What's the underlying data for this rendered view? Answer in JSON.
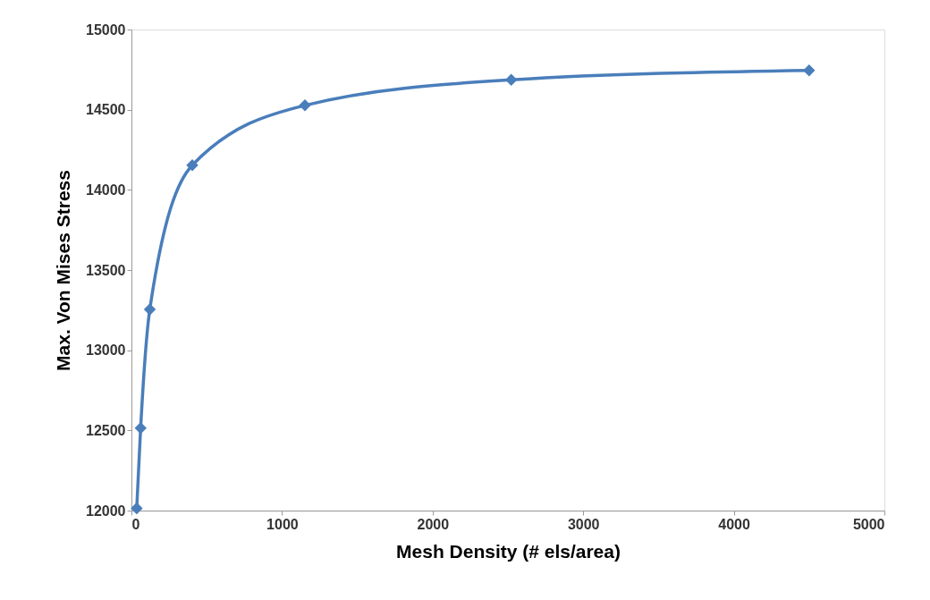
{
  "chart_data": {
    "type": "line",
    "xlabel": "Mesh Density (# els/area)",
    "ylabel": "Max. Von Mises Stress",
    "x": [
      35,
      61,
      122,
      404,
      1152,
      2522,
      4500
    ],
    "series": [
      {
        "color": "#4a7ebb",
        "values": [
          12014,
          12514,
          13255,
          14154,
          14527,
          14686,
          14745
        ]
      }
    ],
    "xlim": [
      0,
      5000
    ],
    "xticks": [
      0,
      1000,
      2000,
      3000,
      4000,
      5000
    ],
    "ylim": [
      12000,
      15000
    ],
    "yticks": [
      12000,
      12500,
      13000,
      13500,
      14000,
      14500,
      15000
    ],
    "grid": false,
    "marker": "diamond",
    "line_style": "solid"
  }
}
